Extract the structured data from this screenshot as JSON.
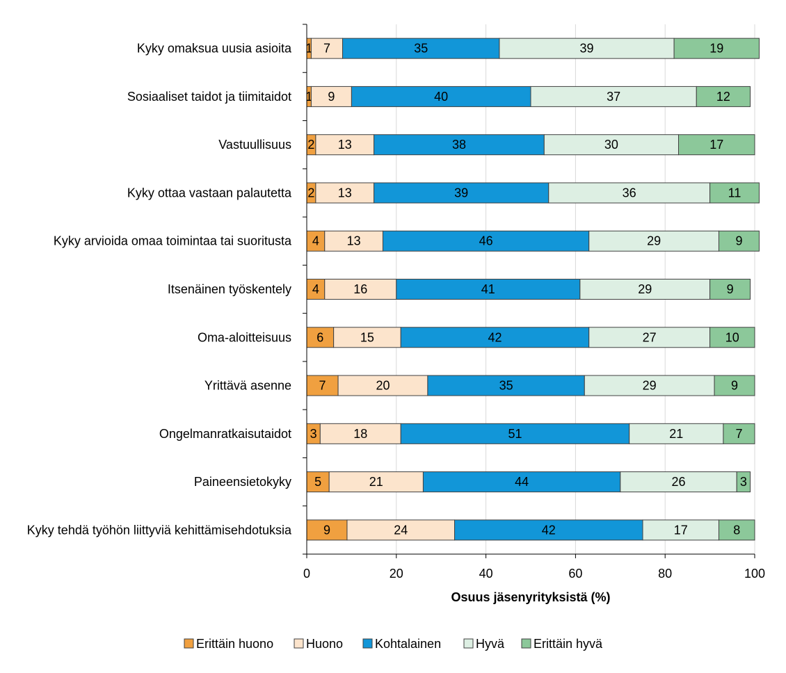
{
  "chart_data": {
    "type": "bar",
    "orientation": "horizontal",
    "stacked": true,
    "title": "",
    "xlabel": "Osuus jäsenyrityksistä (%)",
    "ylabel": "",
    "xlim": [
      0,
      100
    ],
    "xticks": [
      0,
      20,
      40,
      60,
      80,
      100
    ],
    "grid": "vertical",
    "legend_position": "bottom",
    "categories": [
      "Kyky omaksua uusia asioita",
      "Sosiaaliset taidot ja tiimitaidot",
      "Vastuullisuus",
      "Kyky ottaa vastaan palautetta",
      "Kyky arvioida omaa toimintaa tai suoritusta",
      "Itsenäinen työskentely",
      "Oma-aloitteisuus",
      "Yrittävä asenne",
      "Ongelmanratkaisutaidot",
      "Paineensietokyky",
      "Kyky tehdä työhön liittyviä kehittämisehdotuksia"
    ],
    "series": [
      {
        "name": "Erittäin huono",
        "color": "#F0A040",
        "values": [
          1,
          1,
          2,
          2,
          4,
          4,
          6,
          7,
          3,
          5,
          9
        ]
      },
      {
        "name": "Huono",
        "color": "#FCE4CC",
        "values": [
          7,
          9,
          13,
          13,
          13,
          16,
          15,
          20,
          18,
          21,
          24
        ]
      },
      {
        "name": "Kohtalainen",
        "color": "#1296D8",
        "values": [
          35,
          40,
          38,
          39,
          46,
          41,
          42,
          35,
          51,
          44,
          42
        ]
      },
      {
        "name": "Hyvä",
        "color": "#DDEFE3",
        "values": [
          39,
          37,
          30,
          36,
          29,
          29,
          27,
          29,
          21,
          26,
          17
        ]
      },
      {
        "name": "Erittäin hyvä",
        "color": "#8CC89A",
        "values": [
          19,
          12,
          17,
          11,
          9,
          9,
          10,
          9,
          7,
          3,
          8
        ]
      }
    ]
  }
}
